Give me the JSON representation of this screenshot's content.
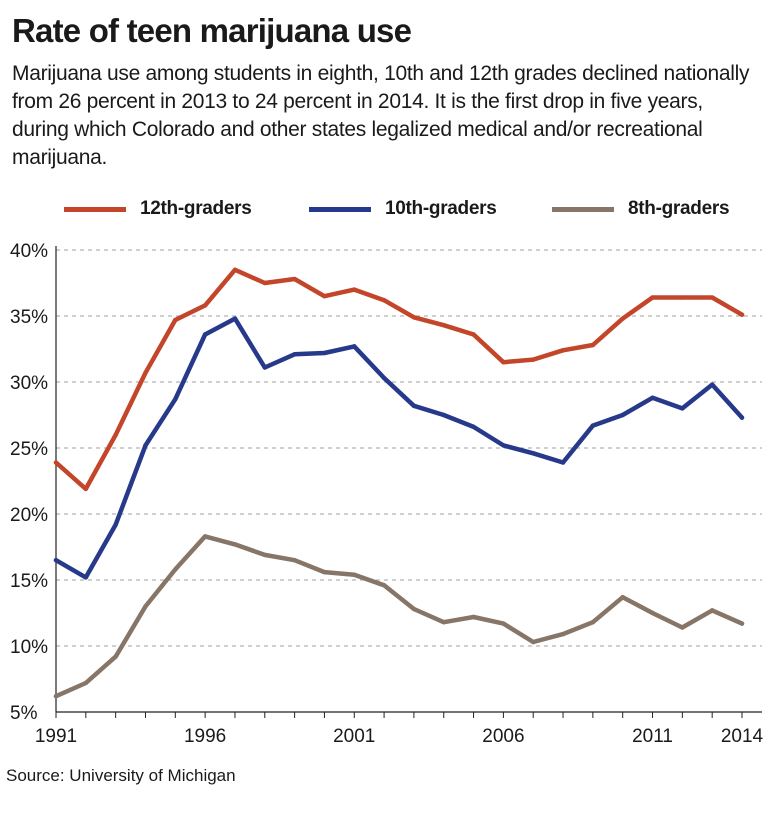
{
  "header": {
    "title": "Rate of teen marijuana use",
    "subtitle": "Marijuana use among students in eighth, 10th and 12th grades declined nationally from 26 percent in 2013 to 24 percent in 2014. It is the first drop in five years, during which Colorado and other states legalized medical and/or recreational marijuana."
  },
  "footer": {
    "source": "Source: University of Michigan"
  },
  "colors": {
    "grid": "#b3b3b3",
    "axis": "#222222"
  },
  "chart_data": {
    "type": "line",
    "x": [
      1991,
      1992,
      1993,
      1994,
      1995,
      1996,
      1997,
      1998,
      1999,
      2000,
      2001,
      2002,
      2003,
      2004,
      2005,
      2006,
      2007,
      2008,
      2009,
      2010,
      2011,
      2012,
      2013,
      2014
    ],
    "xticks": [
      1991,
      1996,
      2001,
      2006,
      2011,
      2014
    ],
    "xtick_labels": [
      "1991",
      "1996",
      "2001",
      "2006",
      "2011",
      "2014"
    ],
    "yticks": [
      5,
      10,
      15,
      20,
      25,
      30,
      35,
      40
    ],
    "ytick_labels": [
      "5%",
      "10%",
      "15%",
      "20%",
      "25%",
      "30%",
      "35%",
      "40%"
    ],
    "xlim": [
      1991,
      2014
    ],
    "ylim": [
      5,
      40
    ],
    "grid": "horizontal dashed",
    "legend_position": "top",
    "series": [
      {
        "name": "12th-graders",
        "color": "#c4462a",
        "values": [
          23.9,
          21.9,
          26.0,
          30.7,
          34.7,
          35.8,
          38.5,
          37.5,
          37.8,
          36.5,
          37.0,
          36.2,
          34.9,
          34.3,
          33.6,
          31.5,
          31.7,
          32.4,
          32.8,
          34.8,
          36.4,
          36.4,
          36.4,
          35.1
        ]
      },
      {
        "name": "10th-graders",
        "color": "#27398a",
        "values": [
          16.5,
          15.2,
          19.2,
          25.2,
          28.7,
          33.6,
          34.8,
          31.1,
          32.1,
          32.2,
          32.7,
          30.3,
          28.2,
          27.5,
          26.6,
          25.2,
          24.6,
          23.9,
          26.7,
          27.5,
          28.8,
          28.0,
          29.8,
          27.3
        ]
      },
      {
        "name": "8th-graders",
        "color": "#877667",
        "values": [
          6.2,
          7.2,
          9.2,
          13.0,
          15.8,
          18.3,
          17.7,
          16.9,
          16.5,
          15.6,
          15.4,
          14.6,
          12.8,
          11.8,
          12.2,
          11.7,
          10.3,
          10.9,
          11.8,
          13.7,
          12.5,
          11.4,
          12.7,
          11.7
        ]
      }
    ]
  }
}
